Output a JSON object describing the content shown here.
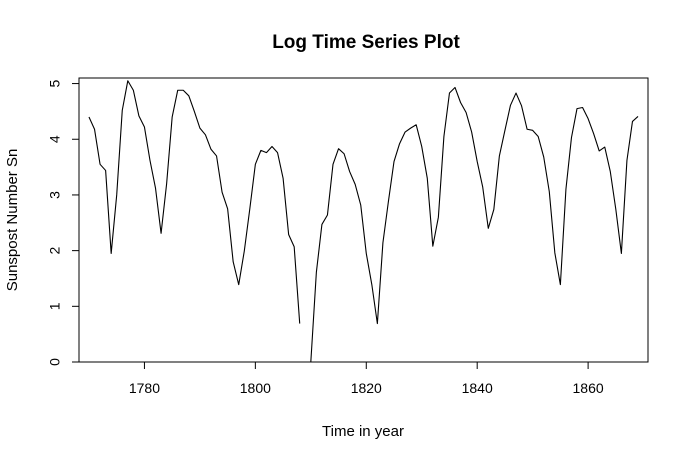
{
  "chart_data": {
    "type": "line",
    "title": "Log Time Series Plot",
    "xlabel": "Time in year",
    "ylabel": "Sunspost Number Sn",
    "xlim": [
      1768.2,
      1870.8
    ],
    "ylim": [
      0,
      5.1
    ],
    "xticks": [
      1780,
      1800,
      1820,
      1840,
      1860
    ],
    "yticks": [
      0,
      1,
      2,
      3,
      4,
      5
    ],
    "grid": false,
    "line_color": "#000000",
    "series": [
      {
        "x": [
          1770,
          1771,
          1772,
          1773,
          1774,
          1775,
          1776,
          1777,
          1778,
          1779,
          1780,
          1781,
          1782,
          1783,
          1784,
          1785,
          1786,
          1787,
          1788,
          1789,
          1790,
          1791,
          1792,
          1793,
          1794,
          1795,
          1796,
          1797,
          1798,
          1799,
          1800,
          1801,
          1802,
          1803,
          1804,
          1805,
          1806,
          1807,
          1808,
          1809,
          1810,
          1811,
          1812,
          1813,
          1814,
          1815,
          1816,
          1817,
          1818,
          1819,
          1820,
          1821,
          1822,
          1823,
          1824,
          1825,
          1826,
          1827,
          1828,
          1829,
          1830,
          1831,
          1832,
          1833,
          1834,
          1835,
          1836,
          1837,
          1838,
          1839,
          1840,
          1841,
          1842,
          1843,
          1844,
          1845,
          1846,
          1847,
          1848,
          1849,
          1850,
          1851,
          1852,
          1853,
          1854,
          1855,
          1856,
          1857,
          1858,
          1859,
          1860,
          1861,
          1862,
          1863,
          1864,
          1865,
          1866,
          1867,
          1868,
          1869
        ],
        "y": [
          4.4,
          4.18,
          3.55,
          3.44,
          1.95,
          3.0,
          4.52,
          5.05,
          4.88,
          4.42,
          4.22,
          3.62,
          3.12,
          2.31,
          3.2,
          4.4,
          4.88,
          4.88,
          4.78,
          4.5,
          4.2,
          4.08,
          3.82,
          3.7,
          3.05,
          2.75,
          1.8,
          1.39,
          1.99,
          2.75,
          3.55,
          3.8,
          3.76,
          3.87,
          3.76,
          3.3,
          2.29,
          2.07,
          0.69,
          null,
          0.0,
          1.61,
          2.47,
          2.64,
          3.55,
          3.83,
          3.74,
          3.42,
          3.19,
          2.82,
          1.95,
          1.39,
          0.69,
          2.14,
          2.89,
          3.6,
          3.92,
          4.13,
          4.2,
          4.26,
          3.87,
          3.3,
          2.08,
          2.6,
          4.05,
          4.83,
          4.93,
          4.66,
          4.48,
          4.13,
          3.6,
          3.14,
          2.4,
          2.74,
          3.7,
          4.16,
          4.61,
          4.83,
          4.6,
          4.18,
          4.16,
          4.05,
          3.68,
          3.06,
          1.96,
          1.39,
          3.1,
          4.03,
          4.55,
          4.57,
          4.37,
          4.1,
          3.79,
          3.86,
          3.42,
          2.74,
          1.95,
          3.62,
          4.32,
          4.41
        ]
      }
    ]
  }
}
